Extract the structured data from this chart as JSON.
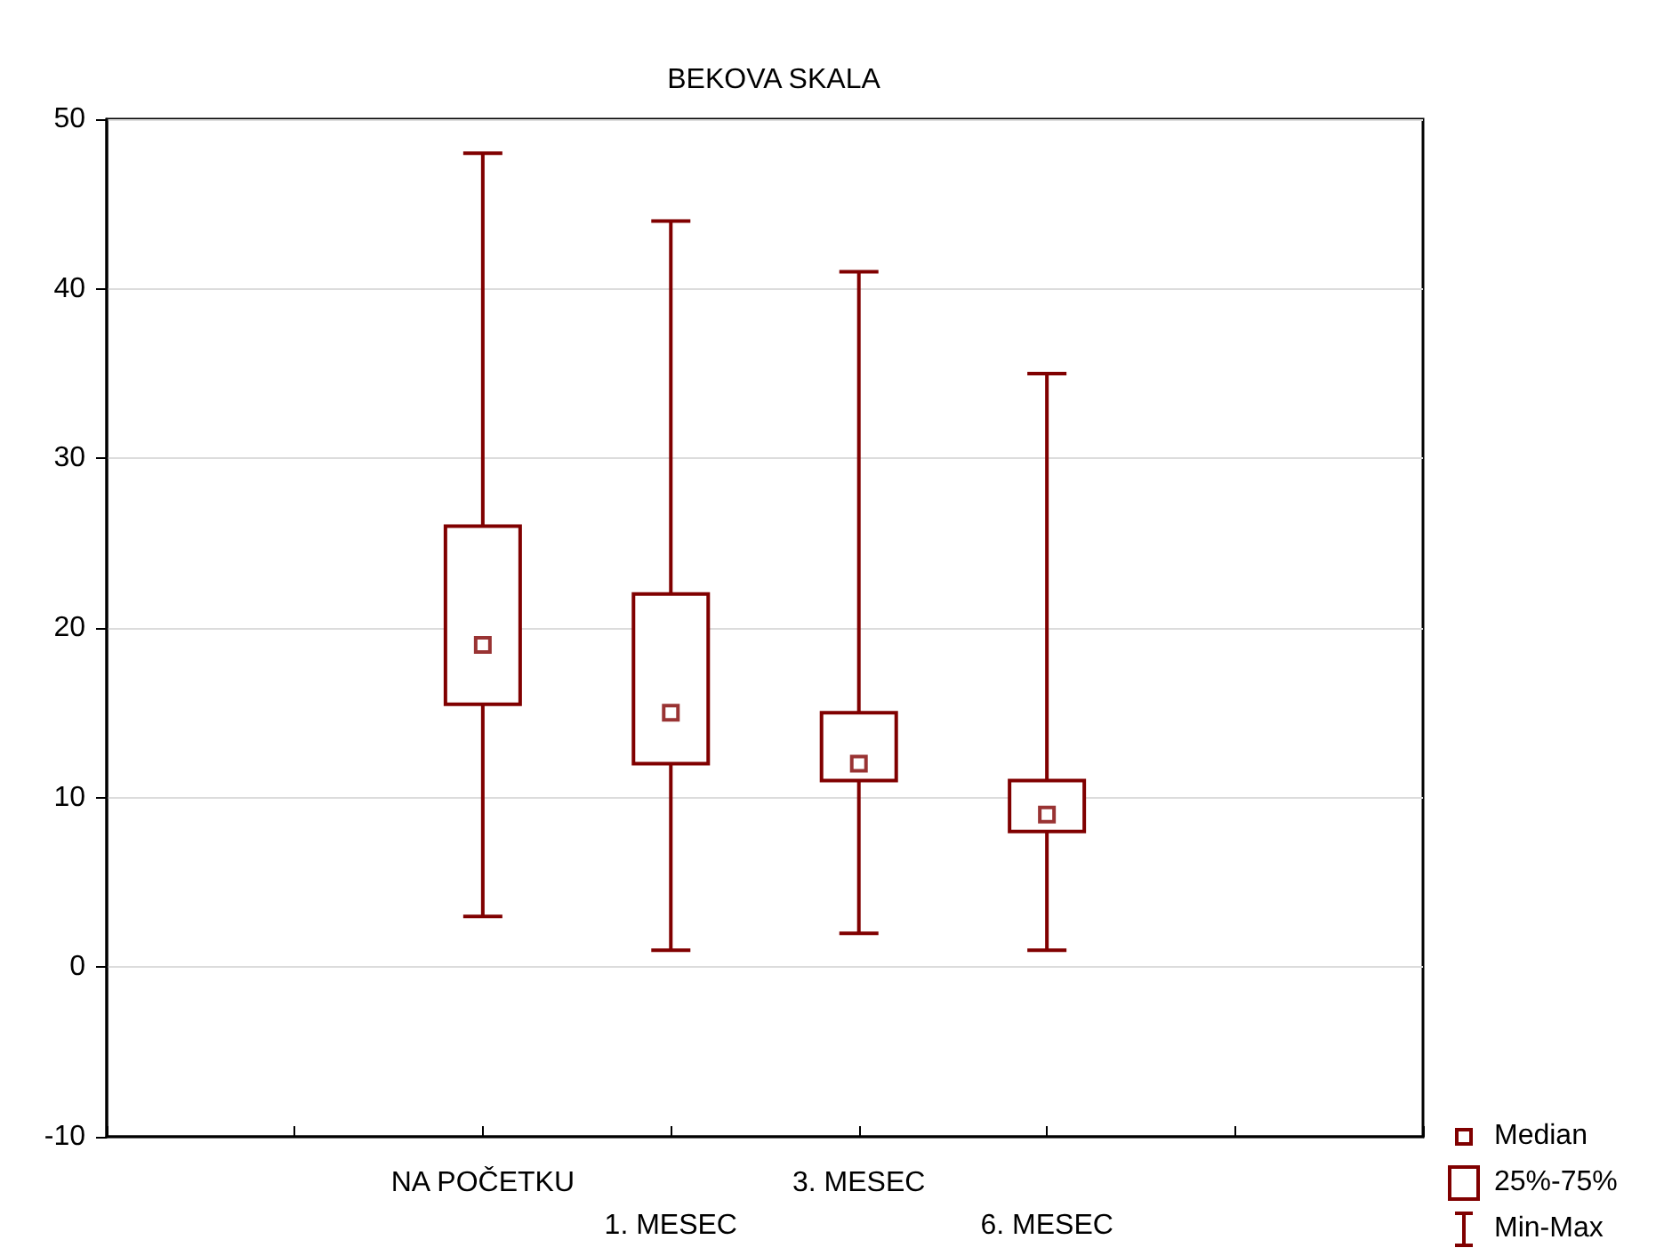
{
  "chart_data": {
    "type": "box",
    "title": "BEKOVA SKALA",
    "categories": [
      null,
      null,
      "NA POČETKU",
      "1. MESEC",
      "3. MESEC",
      "6. MESEC",
      null,
      null
    ],
    "series": [
      {
        "color": "#800000",
        "boxes": [
          null,
          null,
          {
            "low": 3,
            "q1": 15.5,
            "median": 19,
            "q3": 26,
            "high": 48
          },
          {
            "low": 1,
            "q1": 12,
            "median": 15,
            "q3": 22,
            "high": 44
          },
          {
            "low": 2,
            "q1": 11,
            "median": 12,
            "q3": 15,
            "high": 41
          },
          {
            "low": 1,
            "q1": 8,
            "median": 9,
            "q3": 11,
            "high": 35
          },
          null,
          null
        ]
      }
    ],
    "ylim": [
      -10,
      50
    ],
    "yticks": [
      -10,
      0,
      10,
      20,
      30,
      40,
      50
    ],
    "grid": "y",
    "marker": "square",
    "annotations": [
      "Median",
      "25%-75%",
      "Min-Max"
    ]
  }
}
